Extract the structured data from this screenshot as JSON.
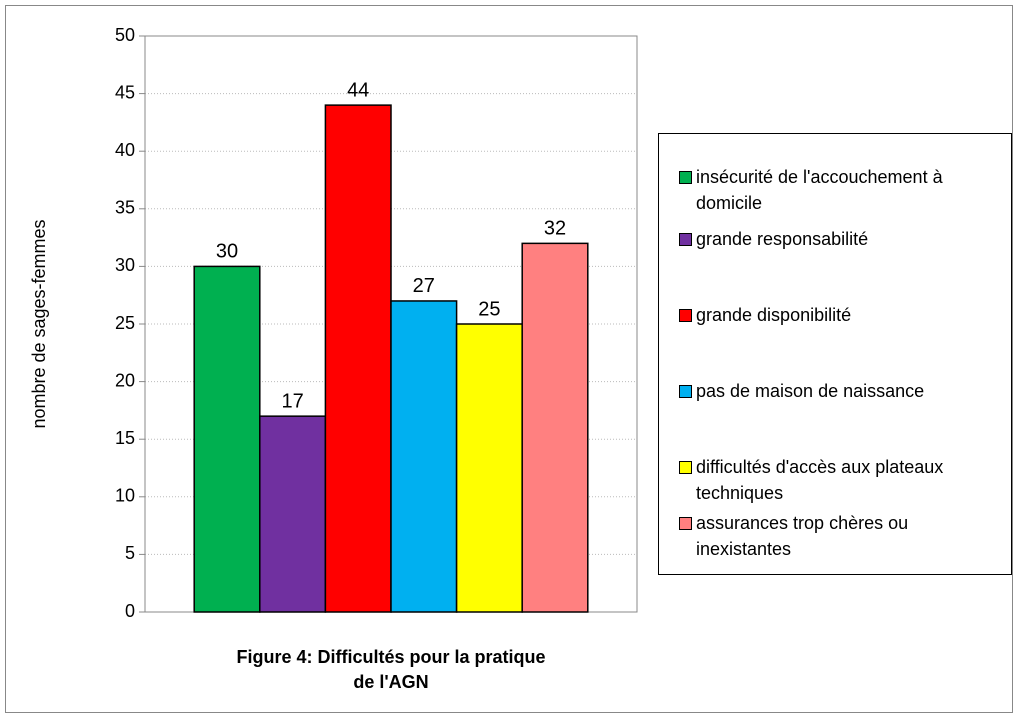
{
  "chart_data": {
    "type": "bar",
    "title": "Figure 4: Difficultés pour la pratique de l'AGN",
    "ylabel": "nombre de sages-femmes",
    "ylim": [
      0,
      50
    ],
    "yticks": [
      0,
      5,
      10,
      15,
      20,
      25,
      30,
      35,
      40,
      45,
      50
    ],
    "grid": true,
    "legend": "right",
    "series": [
      {
        "name": "insécurité de l'accouchement à domicile",
        "color": "#00b050",
        "values": [
          30
        ]
      },
      {
        "name": "grande responsabilité",
        "color": "#7030a0",
        "values": [
          17
        ]
      },
      {
        "name": "grande disponibilité",
        "color": "#ff0000",
        "values": [
          44
        ]
      },
      {
        "name": "pas de maison de naissance",
        "color": "#00b0f0",
        "values": [
          27
        ]
      },
      {
        "name": "difficultés d'accès aux plateaux techniques",
        "color": "#ffff00",
        "values": [
          25
        ]
      },
      {
        "name": "assurances trop chères ou inexistantes",
        "color": "#ff8080",
        "values": [
          32
        ]
      }
    ]
  }
}
